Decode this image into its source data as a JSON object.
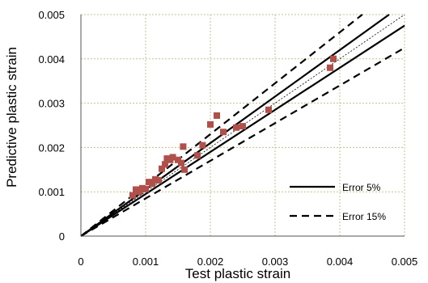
{
  "chart_data": {
    "type": "scatter",
    "xlabel": "Test plastic strain",
    "ylabel": "Predictive plastic strain",
    "xlim": [
      0,
      0.005
    ],
    "ylim": [
      0,
      0.005
    ],
    "x_ticks": [
      "0",
      "0.001",
      "0.002",
      "0.003",
      "0.004",
      "0.005"
    ],
    "y_ticks": [
      "0",
      "0.001",
      "0.002",
      "0.003",
      "0.004",
      "0.005"
    ],
    "grid": true,
    "grid_style": "dotted",
    "grid_color": "#c8bf8c",
    "marker_color": "#b0504a",
    "points": [
      [
        0.0008,
        0.00092
      ],
      [
        0.00085,
        0.00105
      ],
      [
        0.0009,
        0.001
      ],
      [
        0.00095,
        0.00108
      ],
      [
        0.001,
        0.00106
      ],
      [
        0.00105,
        0.00122
      ],
      [
        0.0011,
        0.00118
      ],
      [
        0.00115,
        0.00128
      ],
      [
        0.0012,
        0.00126
      ],
      [
        0.00125,
        0.00152
      ],
      [
        0.0013,
        0.00162
      ],
      [
        0.00133,
        0.00175
      ],
      [
        0.00138,
        0.00172
      ],
      [
        0.00142,
        0.00178
      ],
      [
        0.0015,
        0.00172
      ],
      [
        0.00155,
        0.00165
      ],
      [
        0.00158,
        0.00202
      ],
      [
        0.0016,
        0.0015
      ],
      [
        0.0018,
        0.00182
      ],
      [
        0.00188,
        0.00205
      ],
      [
        0.002,
        0.00252
      ],
      [
        0.0021,
        0.00272
      ],
      [
        0.0022,
        0.00235
      ],
      [
        0.0024,
        0.00245
      ],
      [
        0.0025,
        0.00248
      ],
      [
        0.0029,
        0.00285
      ],
      [
        0.00385,
        0.0038
      ],
      [
        0.0039,
        0.004
      ]
    ],
    "reference_lines": [
      {
        "name": "",
        "slope": 1.0,
        "style": "thin-dotted"
      },
      {
        "name": "Error 5%",
        "slopes": [
          1.05,
          0.95
        ],
        "style": "solid"
      },
      {
        "name": "Error 15%",
        "slopes": [
          1.15,
          0.85
        ],
        "style": "dashed"
      }
    ],
    "legend": {
      "placement": "bottom-right",
      "entries": [
        {
          "label": "Error 5%",
          "style": "solid"
        },
        {
          "label": "Error 15%",
          "style": "dashed"
        }
      ]
    }
  }
}
